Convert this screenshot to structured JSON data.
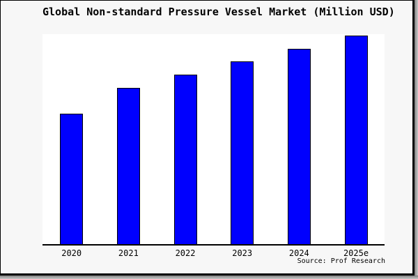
{
  "chart_data": {
    "type": "bar",
    "title": "Global Non-standard Pressure Vessel Market (Million USD)",
    "categories": [
      "2020",
      "2021",
      "2022",
      "2023",
      "2024",
      "2025e"
    ],
    "series": [
      {
        "name": "Global Non-standard Pressure Vessel Market",
        "values": [
          62.5,
          74.9,
          81.3,
          87.6,
          93.6,
          100
        ]
      }
    ],
    "values_note": "No y-axis, gridlines or data labels are shown in the image; values are relative bar heights as percent of the tallest (2025e) bar.",
    "xlabel": "",
    "ylabel": "",
    "ylim": [
      0,
      100
    ],
    "grid": false,
    "legend": false,
    "bar_color": "#0000fe",
    "bar_border_color": "#000000",
    "axis_color": "#000000"
  },
  "footer": {
    "source_text": "Source: Prof Research"
  },
  "colors": {
    "panel_bg": "#f7f7f7",
    "plot_bg": "#ffffff",
    "text": "#000000",
    "frame_border": "#000000",
    "shadow": "#8f8f8f"
  }
}
